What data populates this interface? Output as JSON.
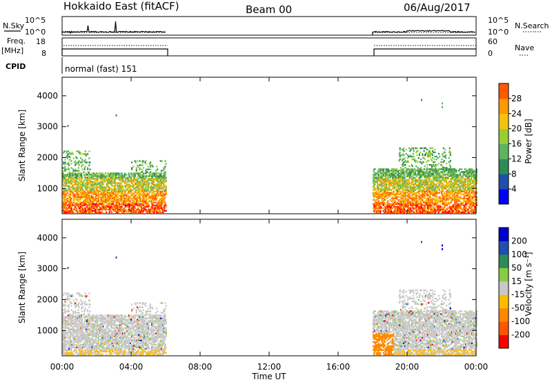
{
  "header": {
    "site": "Hokkaido East (fitACF)",
    "beam": "Beam 00",
    "date": "06/Aug/2017"
  },
  "top_panels": {
    "nsky_label": "N.Sky",
    "nsearch_label": "N.Search",
    "freq_label": "Freq.",
    "freq_unit": "[MHz]",
    "nave_label": "Nave",
    "cpid_label": "CPID",
    "cpid_text": "normal (fast) 151",
    "noise_ticks": [
      "10^5",
      "10^0"
    ],
    "freq_ticks": [
      "18",
      "8"
    ],
    "nave_ticks": [
      "60",
      "0"
    ]
  },
  "chart_data": [
    {
      "type": "heatmap",
      "name": "power",
      "xlabel": "",
      "ylabel": "Slant Range [km]",
      "xlim": [
        0,
        24
      ],
      "ylim": [
        180,
        4600
      ],
      "yticks": [
        1000,
        2000,
        3000,
        4000
      ],
      "colorbar_label": "Power [dB]",
      "colorbar_ticks": [
        4,
        8,
        12,
        16,
        20,
        24,
        28
      ],
      "colorbar_range": [
        0,
        32
      ],
      "data_intervals_hours": [
        [
          0,
          6
        ],
        [
          18,
          24
        ]
      ]
    },
    {
      "type": "heatmap",
      "name": "velocity",
      "xlabel": "Time UT",
      "ylabel": "Slant Range [km]",
      "xlim": [
        0,
        24
      ],
      "ylim": [
        180,
        4600
      ],
      "yticks": [
        1000,
        2000,
        3000,
        4000
      ],
      "xticks": [
        "00:00",
        "04:00",
        "08:00",
        "12:00",
        "16:00",
        "20:00",
        "00:00"
      ],
      "colorbar_label": "Velocity [m s⁻¹]",
      "colorbar_ticks": [
        "200",
        "100",
        "50",
        "15",
        "-15",
        "-50",
        "-100",
        "-200"
      ],
      "data_intervals_hours": [
        [
          0,
          6
        ],
        [
          18,
          24
        ]
      ]
    }
  ],
  "colors": {
    "power_scale": [
      "#0000ff",
      "#1e4faa",
      "#2e8b57",
      "#5fb35f",
      "#9acd32",
      "#f2c40f",
      "#ff9900",
      "#ff5a00",
      "#ff0000"
    ],
    "velocity_scale": [
      "#ff0000",
      "#ff5500",
      "#ff8800",
      "#ffbb00",
      "#c8c8c8",
      "#88cc44",
      "#2e8b57",
      "#1e4faa",
      "#0000cc"
    ],
    "ground_scatter": "#c8c8c8"
  }
}
